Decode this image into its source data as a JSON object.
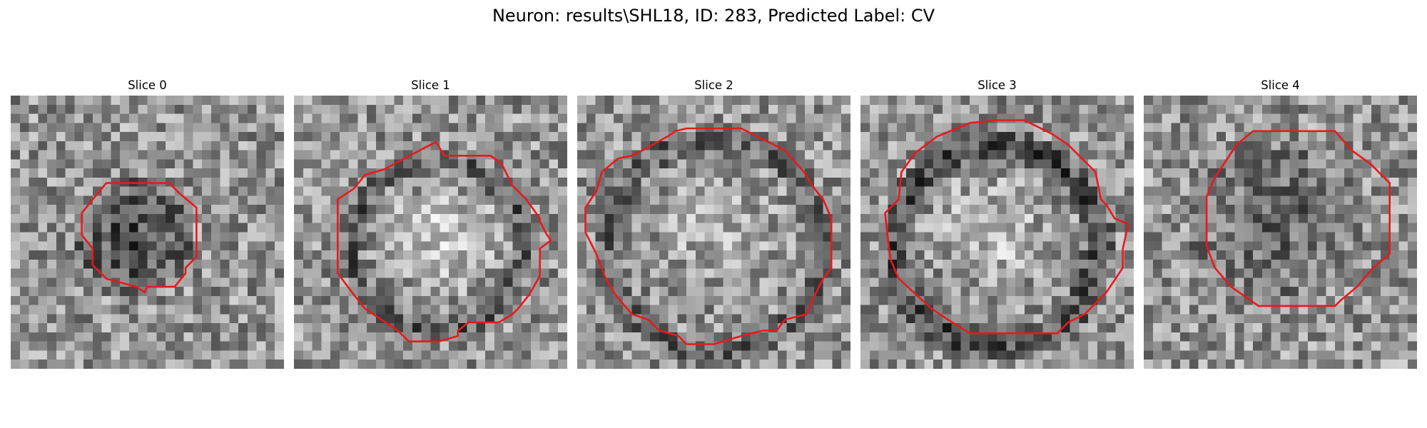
{
  "title": "Neuron: results\\SHL18, ID: 283, Predicted Label: CV",
  "colors": {
    "contour": "#e8191c",
    "background": "#ffffff"
  },
  "grid_size": 30,
  "panels": [
    {
      "label": "Slice 0",
      "seed": 11,
      "ring": {
        "center": [
          0.49,
          0.52
        ],
        "inner": 0.0,
        "outer": 0.0,
        "band": 0.0
      },
      "dark_blob": {
        "center": [
          0.44,
          0.52
        ],
        "radius": 0.22,
        "strength": 0.32
      },
      "bright_core": {
        "center": [
          0.5,
          0.5
        ],
        "radius": 0.0,
        "strength": 0.0
      },
      "contour": [
        [
          0.35,
          0.32
        ],
        [
          0.58,
          0.32
        ],
        [
          0.62,
          0.36
        ],
        [
          0.68,
          0.41
        ],
        [
          0.68,
          0.59
        ],
        [
          0.64,
          0.63
        ],
        [
          0.64,
          0.65
        ],
        [
          0.6,
          0.7
        ],
        [
          0.5,
          0.7
        ],
        [
          0.49,
          0.72
        ],
        [
          0.46,
          0.7
        ],
        [
          0.35,
          0.67
        ],
        [
          0.3,
          0.62
        ],
        [
          0.3,
          0.56
        ],
        [
          0.26,
          0.51
        ],
        [
          0.26,
          0.43
        ],
        [
          0.3,
          0.38
        ]
      ]
    },
    {
      "label": "Slice 1",
      "seed": 23,
      "ring": {
        "center": [
          0.52,
          0.55
        ],
        "inner": 0.26,
        "outer": 0.37,
        "band": 0.22
      },
      "dark_blob": {
        "center": [
          0.5,
          0.5
        ],
        "radius": 0.0,
        "strength": 0.0
      },
      "bright_core": {
        "center": [
          0.55,
          0.52
        ],
        "radius": 0.25,
        "strength": 0.22
      },
      "contour": [
        [
          0.33,
          0.27
        ],
        [
          0.48,
          0.19
        ],
        [
          0.52,
          0.17
        ],
        [
          0.55,
          0.22
        ],
        [
          0.72,
          0.22
        ],
        [
          0.76,
          0.25
        ],
        [
          0.8,
          0.33
        ],
        [
          0.85,
          0.38
        ],
        [
          0.9,
          0.45
        ],
        [
          0.9,
          0.46
        ],
        [
          0.92,
          0.5
        ],
        [
          0.94,
          0.53
        ],
        [
          0.9,
          0.56
        ],
        [
          0.9,
          0.66
        ],
        [
          0.86,
          0.73
        ],
        [
          0.82,
          0.78
        ],
        [
          0.8,
          0.8
        ],
        [
          0.75,
          0.83
        ],
        [
          0.64,
          0.83
        ],
        [
          0.6,
          0.86
        ],
        [
          0.6,
          0.88
        ],
        [
          0.53,
          0.9
        ],
        [
          0.42,
          0.9
        ],
        [
          0.38,
          0.86
        ],
        [
          0.26,
          0.78
        ],
        [
          0.22,
          0.73
        ],
        [
          0.16,
          0.65
        ],
        [
          0.16,
          0.38
        ],
        [
          0.22,
          0.34
        ],
        [
          0.26,
          0.29
        ]
      ]
    },
    {
      "label": "Slice 2",
      "seed": 37,
      "ring": {
        "center": [
          0.5,
          0.55
        ],
        "inner": 0.33,
        "outer": 0.45,
        "band": 0.2
      },
      "dark_blob": {
        "center": [
          0.5,
          0.5
        ],
        "radius": 0.0,
        "strength": 0.0
      },
      "bright_core": {
        "center": [
          0.5,
          0.52
        ],
        "radius": 0.28,
        "strength": 0.12
      },
      "contour": [
        [
          0.24,
          0.2
        ],
        [
          0.33,
          0.15
        ],
        [
          0.36,
          0.13
        ],
        [
          0.4,
          0.12
        ],
        [
          0.6,
          0.12
        ],
        [
          0.68,
          0.16
        ],
        [
          0.76,
          0.2
        ],
        [
          0.83,
          0.28
        ],
        [
          0.86,
          0.33
        ],
        [
          0.9,
          0.38
        ],
        [
          0.93,
          0.45
        ],
        [
          0.93,
          0.63
        ],
        [
          0.9,
          0.67
        ],
        [
          0.86,
          0.75
        ],
        [
          0.84,
          0.8
        ],
        [
          0.76,
          0.82
        ],
        [
          0.73,
          0.86
        ],
        [
          0.68,
          0.86
        ],
        [
          0.6,
          0.88
        ],
        [
          0.5,
          0.91
        ],
        [
          0.4,
          0.91
        ],
        [
          0.37,
          0.88
        ],
        [
          0.3,
          0.86
        ],
        [
          0.26,
          0.82
        ],
        [
          0.2,
          0.8
        ],
        [
          0.14,
          0.73
        ],
        [
          0.1,
          0.66
        ],
        [
          0.07,
          0.58
        ],
        [
          0.03,
          0.5
        ],
        [
          0.03,
          0.41
        ],
        [
          0.07,
          0.35
        ],
        [
          0.09,
          0.28
        ],
        [
          0.15,
          0.23
        ],
        [
          0.2,
          0.22
        ]
      ]
    },
    {
      "label": "Slice 3",
      "seed": 53,
      "ring": {
        "center": [
          0.5,
          0.55
        ],
        "inner": 0.3,
        "outer": 0.44,
        "band": 0.28
      },
      "dark_blob": {
        "center": [
          0.5,
          0.5
        ],
        "radius": 0.0,
        "strength": 0.0
      },
      "bright_core": {
        "center": [
          0.48,
          0.5
        ],
        "radius": 0.26,
        "strength": 0.18
      },
      "contour": [
        [
          0.28,
          0.15
        ],
        [
          0.4,
          0.1
        ],
        [
          0.5,
          0.09
        ],
        [
          0.6,
          0.09
        ],
        [
          0.7,
          0.14
        ],
        [
          0.76,
          0.18
        ],
        [
          0.86,
          0.28
        ],
        [
          0.88,
          0.38
        ],
        [
          0.9,
          0.4
        ],
        [
          0.93,
          0.45
        ],
        [
          0.98,
          0.47
        ],
        [
          0.96,
          0.56
        ],
        [
          0.96,
          0.63
        ],
        [
          0.9,
          0.72
        ],
        [
          0.82,
          0.8
        ],
        [
          0.76,
          0.83
        ],
        [
          0.72,
          0.87
        ],
        [
          0.62,
          0.87
        ],
        [
          0.4,
          0.87
        ],
        [
          0.32,
          0.82
        ],
        [
          0.26,
          0.78
        ],
        [
          0.14,
          0.67
        ],
        [
          0.11,
          0.6
        ],
        [
          0.1,
          0.52
        ],
        [
          0.09,
          0.43
        ],
        [
          0.14,
          0.38
        ],
        [
          0.15,
          0.28
        ],
        [
          0.2,
          0.21
        ]
      ]
    },
    {
      "label": "Slice 4",
      "seed": 71,
      "ring": {
        "center": [
          0.5,
          0.5
        ],
        "inner": 0.0,
        "outer": 0.0,
        "band": 0.0
      },
      "dark_blob": {
        "center": [
          0.48,
          0.45
        ],
        "radius": 0.32,
        "strength": 0.18
      },
      "bright_core": {
        "center": [
          0.5,
          0.5
        ],
        "radius": 0.0,
        "strength": 0.0
      },
      "contour": [
        [
          0.4,
          0.13
        ],
        [
          0.7,
          0.13
        ],
        [
          0.76,
          0.2
        ],
        [
          0.83,
          0.25
        ],
        [
          0.9,
          0.32
        ],
        [
          0.9,
          0.58
        ],
        [
          0.84,
          0.63
        ],
        [
          0.78,
          0.7
        ],
        [
          0.72,
          0.75
        ],
        [
          0.7,
          0.77
        ],
        [
          0.42,
          0.77
        ],
        [
          0.32,
          0.7
        ],
        [
          0.26,
          0.63
        ],
        [
          0.23,
          0.55
        ],
        [
          0.23,
          0.37
        ],
        [
          0.26,
          0.3
        ],
        [
          0.3,
          0.24
        ],
        [
          0.34,
          0.18
        ]
      ]
    }
  ]
}
